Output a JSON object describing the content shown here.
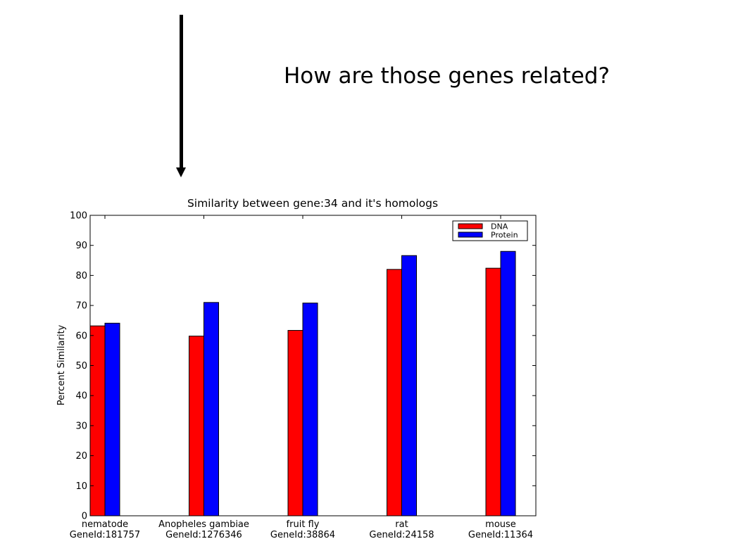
{
  "slide": {
    "headline": "How are those genes related?"
  },
  "chart_data": {
    "type": "bar",
    "title": "Similarity between gene:34 and it's homologs",
    "xlabel": "",
    "ylabel": "Percent Similarity",
    "ylim": [
      0,
      100
    ],
    "yticks": [
      "0",
      "10",
      "20",
      "30",
      "40",
      "50",
      "60",
      "70",
      "80",
      "90",
      "100"
    ],
    "grid": false,
    "legend_position": "top-right",
    "categories": [
      [
        "nematode",
        "GeneId:181757"
      ],
      [
        "Anopheles gambiae",
        "GeneId:1276346"
      ],
      [
        "fruit fly",
        "GeneId:38864"
      ],
      [
        "rat",
        "GeneId:24158"
      ],
      [
        "mouse",
        "GeneId:11364"
      ]
    ],
    "series": [
      {
        "name": "DNA",
        "color": "#ff0000",
        "values": [
          63.2,
          59.8,
          61.7,
          82.0,
          82.4
        ]
      },
      {
        "name": "Protein",
        "color": "#0000ff",
        "values": [
          64.1,
          71.0,
          70.8,
          86.6,
          88.0
        ]
      }
    ]
  }
}
